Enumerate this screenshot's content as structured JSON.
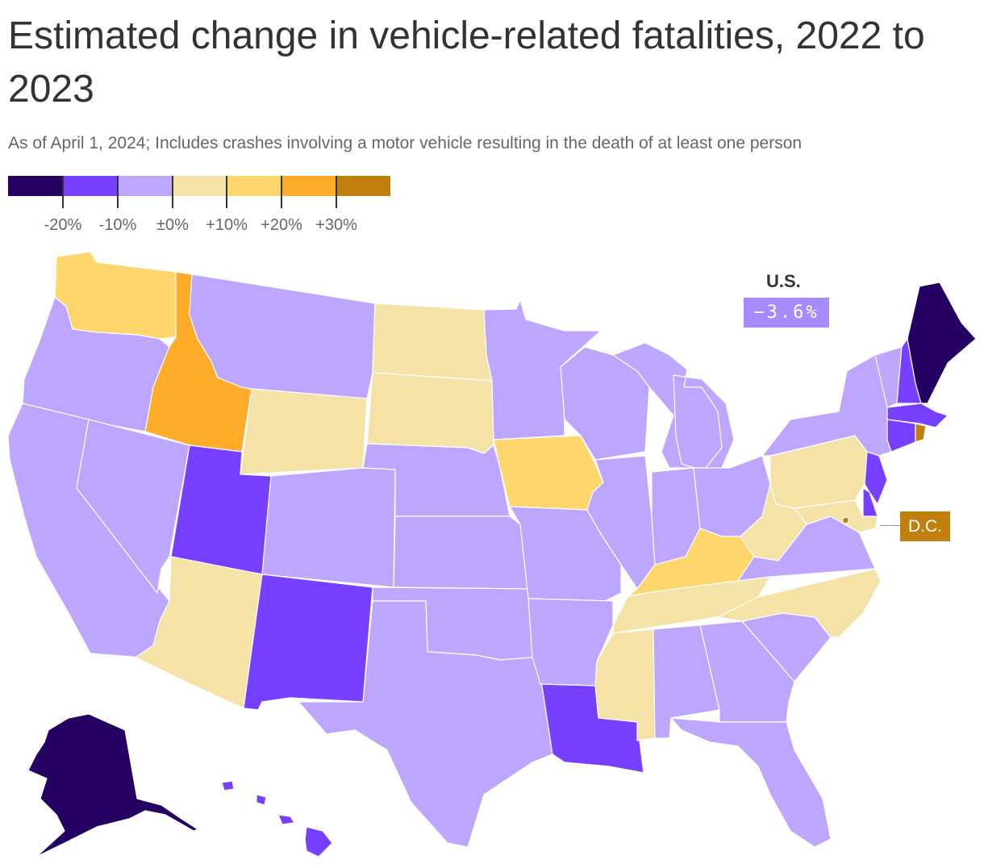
{
  "title": "Estimated change in vehicle-related fatalities, 2022 to 2023",
  "subtitle": "As of April 1, 2024; Includes crashes involving a motor vehicle resulting in the death of at least one person",
  "legend": {
    "colors": [
      "#230061",
      "#773fff",
      "#bea6ff",
      "#f5e2a6",
      "#ffd66b",
      "#ffac2a",
      "#c17f0d"
    ],
    "tick_labels": [
      "-20%",
      "-10%",
      "±0%",
      "+10%",
      "+20%",
      "+30%"
    ]
  },
  "national": {
    "label": "U.S.",
    "value": "−3.6%",
    "color": "#a58bff"
  },
  "dc": {
    "label": "D.C.",
    "color": "#c17f0d"
  },
  "states": [
    {
      "code": "WA",
      "bin": 4
    },
    {
      "code": "OR",
      "bin": 2
    },
    {
      "code": "CA",
      "bin": 2
    },
    {
      "code": "NV",
      "bin": 2
    },
    {
      "code": "ID",
      "bin": 5
    },
    {
      "code": "MT",
      "bin": 2
    },
    {
      "code": "WY",
      "bin": 3
    },
    {
      "code": "UT",
      "bin": 1
    },
    {
      "code": "AZ",
      "bin": 3
    },
    {
      "code": "CO",
      "bin": 2
    },
    {
      "code": "NM",
      "bin": 1
    },
    {
      "code": "ND",
      "bin": 3
    },
    {
      "code": "SD",
      "bin": 3
    },
    {
      "code": "NE",
      "bin": 2
    },
    {
      "code": "KS",
      "bin": 2
    },
    {
      "code": "OK",
      "bin": 2
    },
    {
      "code": "TX",
      "bin": 2
    },
    {
      "code": "MN",
      "bin": 2
    },
    {
      "code": "IA",
      "bin": 4
    },
    {
      "code": "MO",
      "bin": 2
    },
    {
      "code": "AR",
      "bin": 2
    },
    {
      "code": "LA",
      "bin": 1
    },
    {
      "code": "WI",
      "bin": 2
    },
    {
      "code": "IL",
      "bin": 2
    },
    {
      "code": "MI",
      "bin": 2
    },
    {
      "code": "IN",
      "bin": 2
    },
    {
      "code": "OH",
      "bin": 2
    },
    {
      "code": "KY",
      "bin": 4
    },
    {
      "code": "TN",
      "bin": 3
    },
    {
      "code": "MS",
      "bin": 3
    },
    {
      "code": "AL",
      "bin": 2
    },
    {
      "code": "GA",
      "bin": 2
    },
    {
      "code": "FL",
      "bin": 2
    },
    {
      "code": "SC",
      "bin": 2
    },
    {
      "code": "NC",
      "bin": 3
    },
    {
      "code": "VA",
      "bin": 2
    },
    {
      "code": "WV",
      "bin": 3
    },
    {
      "code": "PA",
      "bin": 3
    },
    {
      "code": "NY",
      "bin": 2
    },
    {
      "code": "VT",
      "bin": 2
    },
    {
      "code": "NH",
      "bin": 1
    },
    {
      "code": "ME",
      "bin": 0
    },
    {
      "code": "MA",
      "bin": 1
    },
    {
      "code": "RI",
      "bin": 6
    },
    {
      "code": "CT",
      "bin": 1
    },
    {
      "code": "NJ",
      "bin": 1
    },
    {
      "code": "DE",
      "bin": 1
    },
    {
      "code": "MD",
      "bin": 3
    },
    {
      "code": "DC",
      "bin": 6
    },
    {
      "code": "AK",
      "bin": 0
    },
    {
      "code": "HI",
      "bin": 1
    }
  ]
}
